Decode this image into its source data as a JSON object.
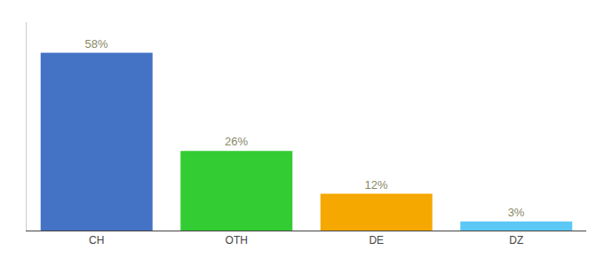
{
  "chart_data": {
    "type": "bar",
    "categories": [
      "CH",
      "OTH",
      "DE",
      "DZ"
    ],
    "values": [
      58,
      26,
      12,
      3
    ],
    "value_labels": [
      "58%",
      "26%",
      "12%",
      "3%"
    ],
    "colors": [
      "#4472c4",
      "#33cc33",
      "#f5a800",
      "#5bc8f5"
    ],
    "ylim": [
      0,
      68
    ],
    "data_labels": true,
    "tick_labels": "x",
    "grid": false
  }
}
